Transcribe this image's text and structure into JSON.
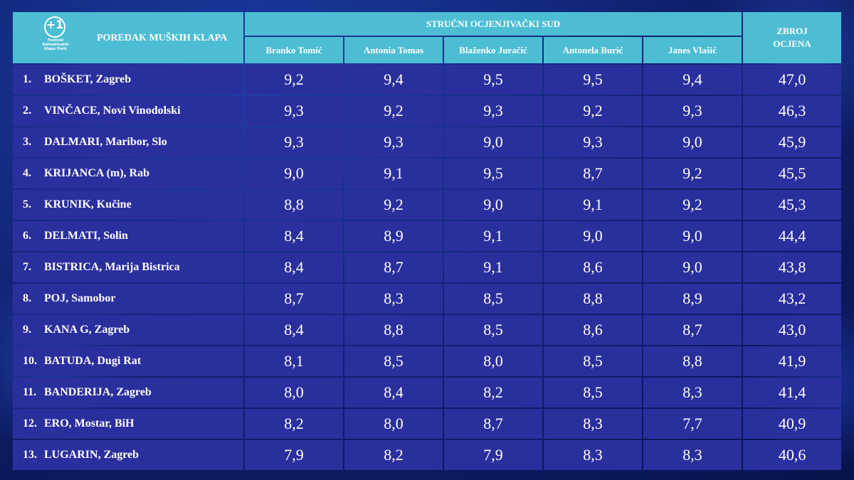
{
  "header": {
    "left_title": "POREDAK MUŠKIH KLAPA",
    "logo_glyph": "+1",
    "logo_caption": "Festival Dalmatinskih Klapa Omiš",
    "jury_title": "STRUČNI OCJENJIVAČKI SUD",
    "total_title_line1": "ZBROJ",
    "total_title_line2": "OCJENA"
  },
  "chart_data": {
    "type": "table",
    "title": "POREDAK MUŠKIH KLAPA",
    "columns": [
      "Branko Tomić",
      "Antonia Tomas",
      "Blaženko Juračić",
      "Antonela Burić",
      "Janes Vlašić"
    ],
    "rows": [
      {
        "rank": "1.",
        "name": "BOŠKET, Zagreb",
        "scores": [
          "9,2",
          "9,4",
          "9,5",
          "9,5",
          "9,4"
        ],
        "total": "47,0"
      },
      {
        "rank": "2.",
        "name": "VINČACE, Novi Vinodolski",
        "scores": [
          "9,3",
          "9,2",
          "9,3",
          "9,2",
          "9,3"
        ],
        "total": "46,3"
      },
      {
        "rank": "3.",
        "name": "DALMARI, Maribor, Slo",
        "scores": [
          "9,3",
          "9,3",
          "9,0",
          "9,3",
          "9,0"
        ],
        "total": "45,9"
      },
      {
        "rank": "4.",
        "name": "KRIJANCA (m), Rab",
        "scores": [
          "9,0",
          "9,1",
          "9,5",
          "8,7",
          "9,2"
        ],
        "total": "45,5"
      },
      {
        "rank": "5.",
        "name": "KRUNIK, Kučine",
        "scores": [
          "8,8",
          "9,2",
          "9,0",
          "9,1",
          "9,2"
        ],
        "total": "45,3"
      },
      {
        "rank": "6.",
        "name": "DELMATI, Solin",
        "scores": [
          "8,4",
          "8,9",
          "9,1",
          "9,0",
          "9,0"
        ],
        "total": "44,4"
      },
      {
        "rank": "7.",
        "name": "BISTRICA, Marija Bistrica",
        "scores": [
          "8,4",
          "8,7",
          "9,1",
          "8,6",
          "9,0"
        ],
        "total": "43,8"
      },
      {
        "rank": "8.",
        "name": "POJ, Samobor",
        "scores": [
          "8,7",
          "8,3",
          "8,5",
          "8,8",
          "8,9"
        ],
        "total": "43,2"
      },
      {
        "rank": "9.",
        "name": "KANA G, Zagreb",
        "scores": [
          "8,4",
          "8,8",
          "8,5",
          "8,6",
          "8,7"
        ],
        "total": "43,0"
      },
      {
        "rank": "10.",
        "name": "BATUDA, Dugi Rat",
        "scores": [
          "8,1",
          "8,5",
          "8,0",
          "8,5",
          "8,8"
        ],
        "total": "41,9"
      },
      {
        "rank": "11.",
        "name": "BANDERIJA, Zagreb",
        "scores": [
          "8,0",
          "8,4",
          "8,2",
          "8,5",
          "8,3"
        ],
        "total": "41,4"
      },
      {
        "rank": "12.",
        "name": "ERO, Mostar, BiH",
        "scores": [
          "8,2",
          "8,0",
          "8,7",
          "8,3",
          "7,7"
        ],
        "total": "40,9"
      },
      {
        "rank": "13.",
        "name": "LUGARIN, Zagreb",
        "scores": [
          "7,9",
          "8,2",
          "7,9",
          "8,3",
          "8,3"
        ],
        "total": "40,6"
      }
    ]
  },
  "colors": {
    "header_bg": "#4dbdd3",
    "row_bg": "#2a2f9e",
    "text": "#ffffff"
  }
}
